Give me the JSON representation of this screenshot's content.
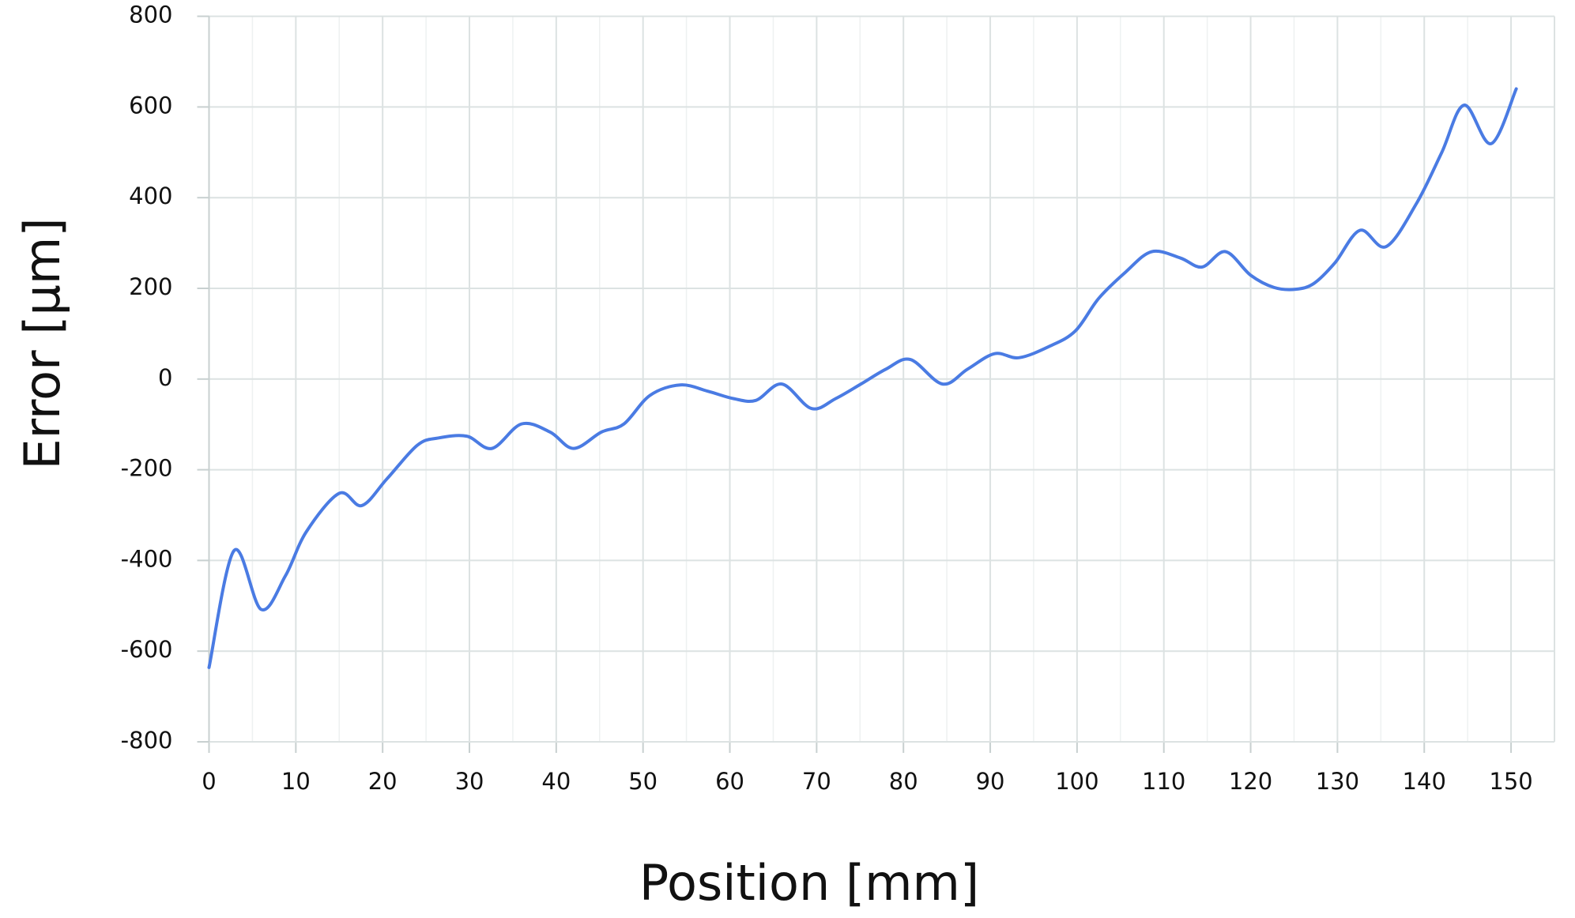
{
  "chart_data": {
    "type": "line",
    "x_label": "Position [mm]",
    "y_label": "Error [µm]",
    "xlim": [
      0,
      155
    ],
    "xticks": [
      0,
      10,
      20,
      30,
      40,
      50,
      60,
      70,
      80,
      90,
      100,
      110,
      120,
      130,
      140,
      150
    ],
    "x_minor_ticks": [
      5,
      15,
      25,
      35,
      45,
      55,
      65,
      75,
      85,
      95,
      105,
      115,
      125,
      135,
      145
    ],
    "ylim": [
      -800,
      800
    ],
    "yticks": [
      -800,
      -600,
      -400,
      -200,
      0,
      200,
      400,
      600,
      800
    ],
    "grid": true,
    "x": [
      0,
      2.9,
      6,
      8.8,
      11.2,
      15,
      17.6,
      20.5,
      24,
      26.4,
      29.7,
      32.6,
      36,
      39.3,
      42,
      45.2,
      47.8,
      50.8,
      54.3,
      57.5,
      60.4,
      63,
      66,
      69.4,
      72.2,
      75.1,
      78,
      80.8,
      84.5,
      87.4,
      90.5,
      93.3,
      96.8,
      99.8,
      102.5,
      105.6,
      108.6,
      111.9,
      114.4,
      117.1,
      120,
      122.7,
      125.2,
      127.3,
      129.7,
      132.6,
      135.6,
      139.1,
      142,
      144.6,
      147.7,
      150.6
    ],
    "series": [
      {
        "name": "Error",
        "color": "#4a7be3",
        "values": [
          -636,
          -378,
          -508,
          -434,
          -337,
          -252,
          -279,
          -220,
          -146,
          -130,
          -126,
          -153,
          -99,
          -117,
          -153,
          -117,
          -99,
          -36,
          -13,
          -27,
          -43,
          -47,
          -11,
          -65,
          -43,
          -11,
          22,
          43,
          -11,
          22,
          56,
          47,
          72,
          106,
          178,
          236,
          281,
          267,
          247,
          281,
          229,
          202,
          198,
          211,
          256,
          328,
          292,
          387,
          499,
          604,
          519,
          640
        ]
      }
    ]
  }
}
